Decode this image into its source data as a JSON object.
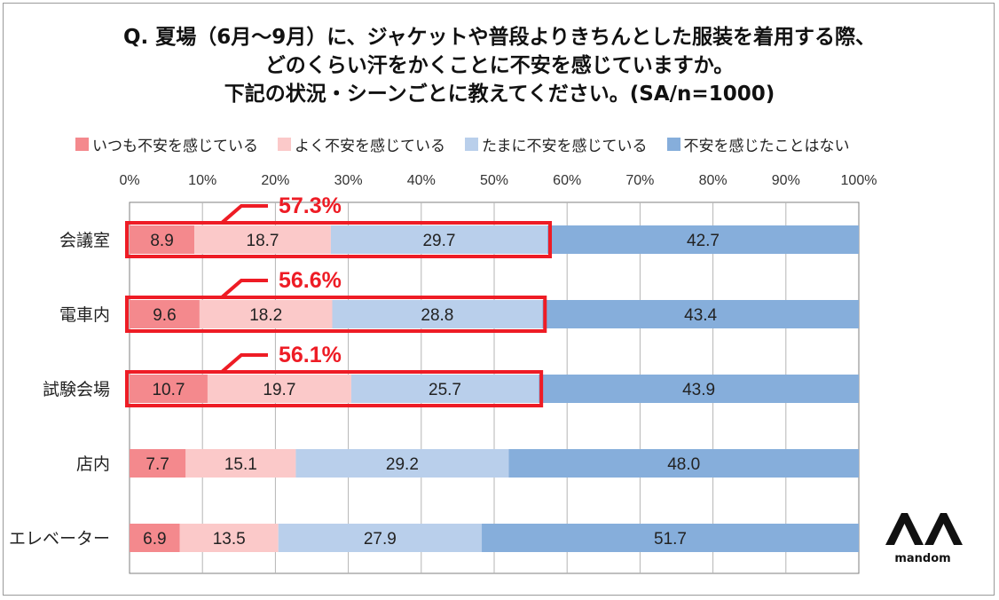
{
  "title_lines": [
    "Q. 夏場（6月～9月）に、ジャケットや普段よりきちんとした服装を着用する際、",
    "どのくらい汗をかくことに不安を感じていますか。",
    "下記の状況・シーンごとに教えてください。(SA/n=1000)"
  ],
  "logo": {
    "text": "mandom",
    "mark": "ΛΛ"
  },
  "colors": [
    "#f4898d",
    "#fbc9c9",
    "#b9cfeb",
    "#86aedb"
  ],
  "highlight_color": "#ee1c25",
  "chart_data": {
    "type": "bar",
    "orientation": "horizontal",
    "stacked": true,
    "title": "Q. 夏場（6月～9月）に、ジャケットや普段よりきちんとした服装を着用する際、どのくらい汗をかくことに不安を感じていますか。下記の状況・シーンごとに教えてください。(SA/n=1000)",
    "categories": [
      "会議室",
      "電車内",
      "試験会場",
      "店内",
      "エレベーター"
    ],
    "series": [
      {
        "name": "いつも不安を感じている",
        "values": [
          8.9,
          9.6,
          10.7,
          7.7,
          6.9
        ]
      },
      {
        "name": "よく不安を感じている",
        "values": [
          18.7,
          18.2,
          19.7,
          15.1,
          13.5
        ]
      },
      {
        "name": "たまに不安を感じている",
        "values": [
          29.7,
          28.8,
          25.7,
          29.2,
          27.9
        ]
      },
      {
        "name": "不安を感じたことはない",
        "values": [
          42.7,
          43.4,
          43.9,
          48.0,
          51.7
        ]
      }
    ],
    "xlim": [
      0,
      100
    ],
    "x_ticks": [
      "0%",
      "10%",
      "20%",
      "30%",
      "40%",
      "50%",
      "60%",
      "70%",
      "80%",
      "90%",
      "100%"
    ],
    "grid": true,
    "legend_position": "top",
    "annotations": [
      {
        "category": "会議室",
        "label": "57.3%",
        "value": 57.3
      },
      {
        "category": "電車内",
        "label": "56.6%",
        "value": 56.6
      },
      {
        "category": "試験会場",
        "label": "56.1%",
        "value": 56.1
      }
    ]
  }
}
